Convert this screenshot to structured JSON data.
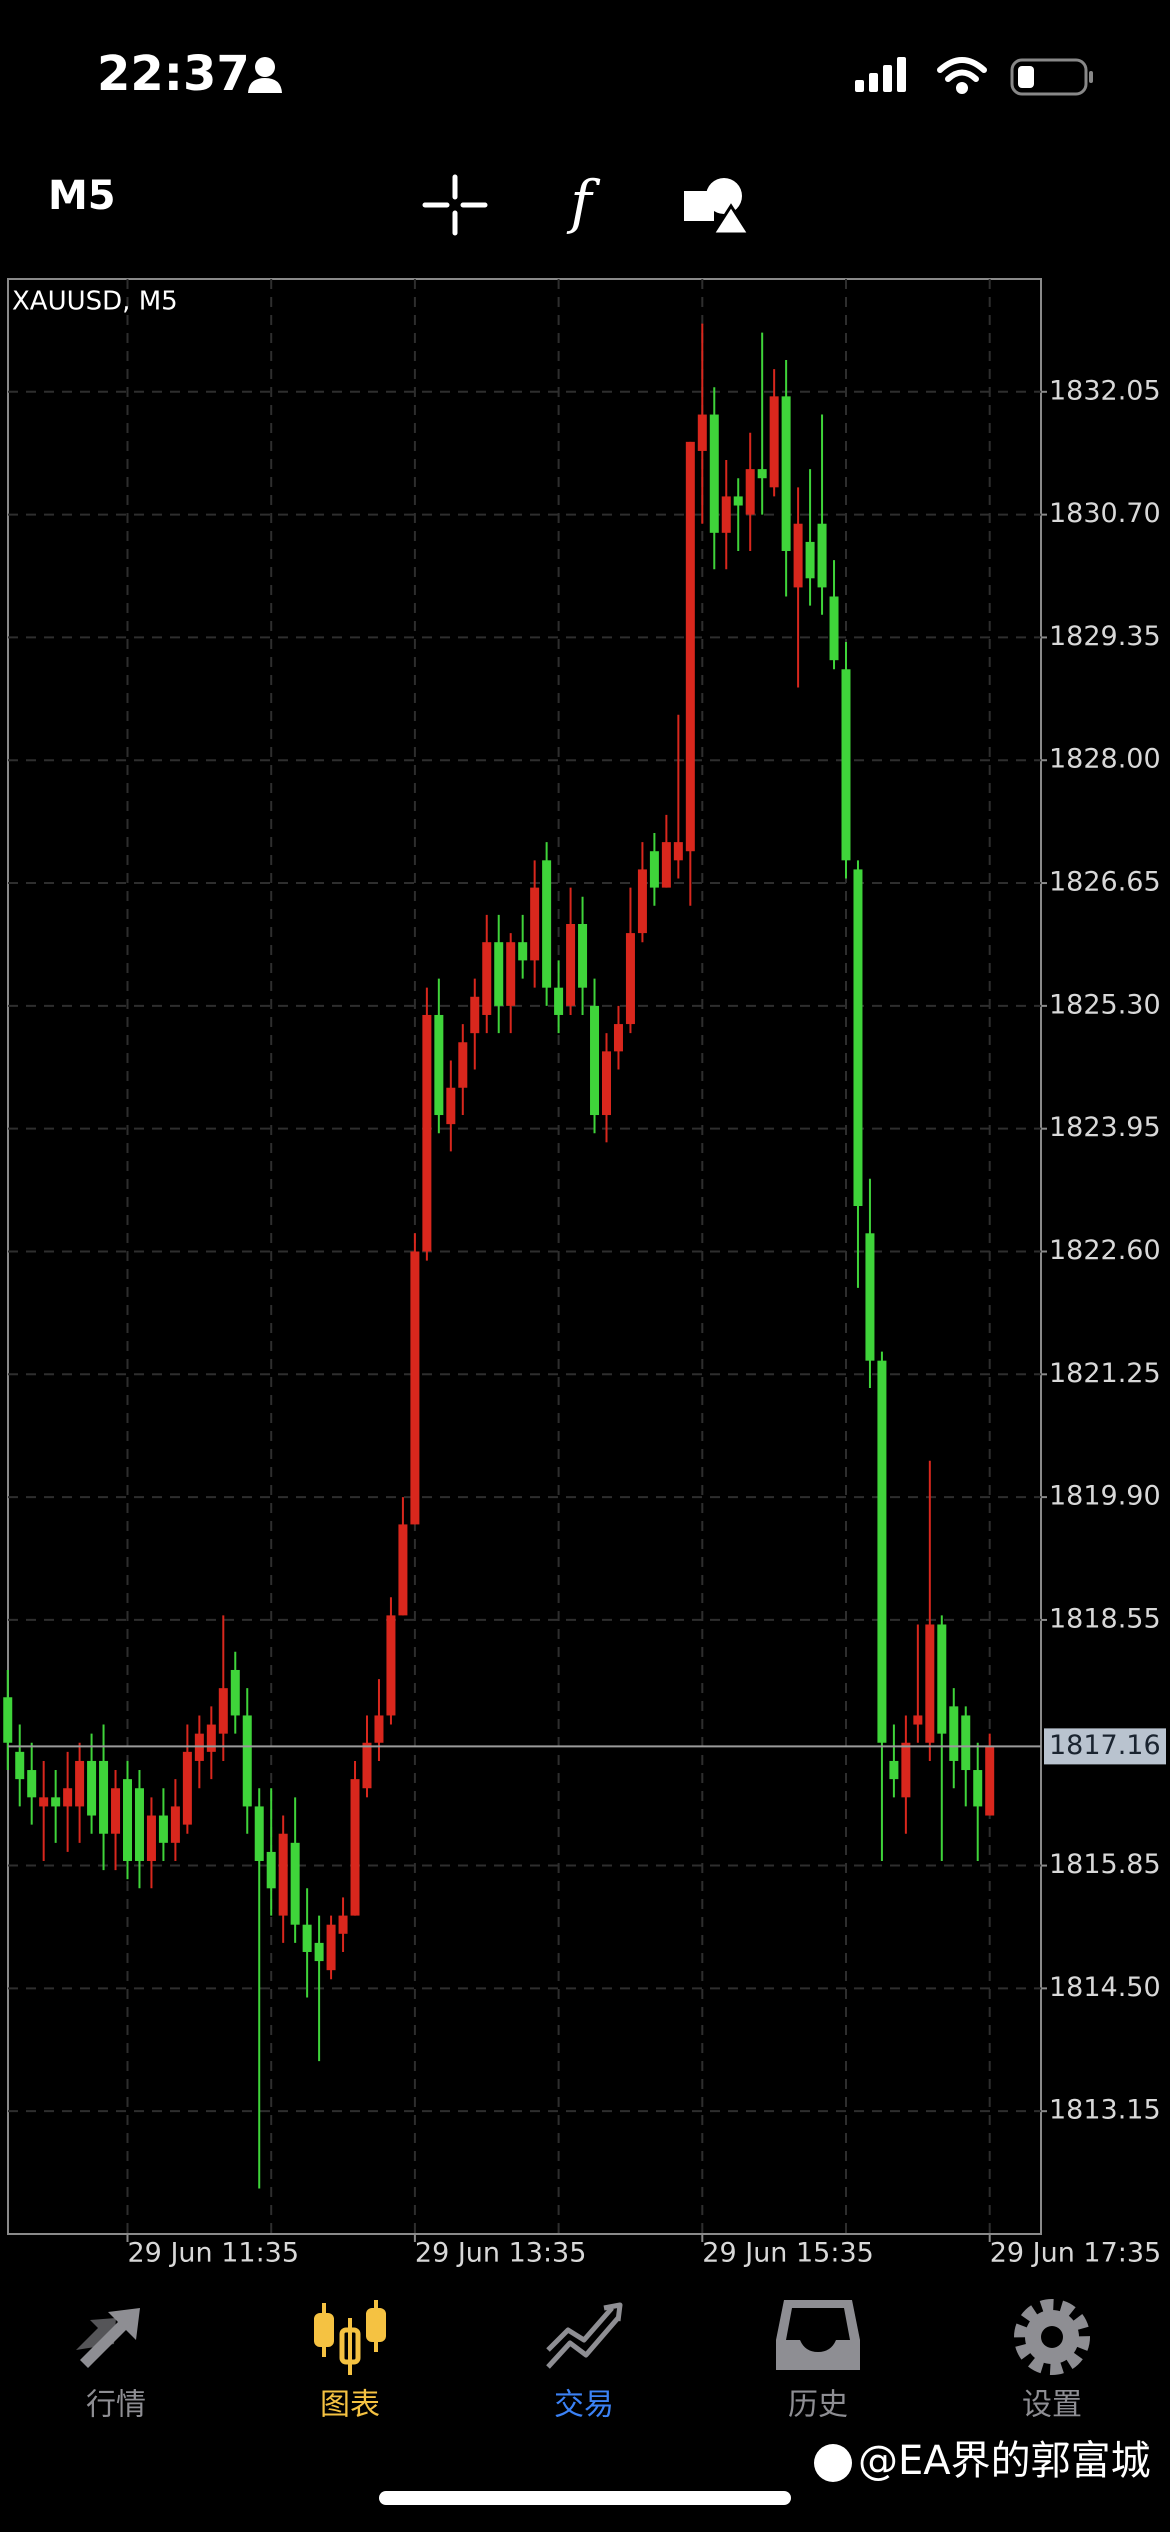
{
  "status_bar": {
    "time": "22:37"
  },
  "toolbar": {
    "timeframe": "M5"
  },
  "chart_data": {
    "type": "candlestick",
    "title": "XAUUSD, M5",
    "categories": [
      null,
      null,
      null,
      null,
      null,
      null,
      null,
      null,
      null,
      null,
      "29 Jun 11:35",
      null,
      null,
      null,
      null,
      null,
      null,
      null,
      null,
      null,
      null,
      null,
      null,
      null,
      null,
      null,
      null,
      null,
      null,
      null,
      null,
      null,
      null,
      null,
      "29 Jun 13:35",
      null,
      null,
      null,
      null,
      null,
      null,
      null,
      null,
      null,
      null,
      null,
      null,
      null,
      null,
      null,
      null,
      null,
      null,
      null,
      null,
      null,
      null,
      null,
      "29 Jun 15:35",
      null,
      null,
      null,
      null,
      null,
      null,
      null,
      null,
      null,
      null,
      null,
      null,
      null,
      null,
      null,
      null,
      null,
      null,
      null,
      null,
      null,
      null,
      null,
      "29 Jun 17:35"
    ],
    "open": [
      1817.7,
      1817.1,
      1816.9,
      1816.5,
      1816.6,
      1816.5,
      1816.5,
      1817.0,
      1817.0,
      1816.2,
      1816.8,
      1816.7,
      1815.9,
      1816.4,
      1816.1,
      1816.3,
      1817.0,
      1817.1,
      1817.3,
      1818.0,
      1817.5,
      1816.5,
      1816.0,
      1815.3,
      1816.1,
      1815.2,
      1815.0,
      1814.7,
      1815.1,
      1815.3,
      1816.7,
      1817.2,
      1817.5,
      1818.6,
      1819.6,
      1822.6,
      1825.2,
      1824.0,
      1824.4,
      1825.0,
      1825.2,
      1826.0,
      1825.3,
      1826.0,
      1825.8,
      1826.9,
      1825.5,
      1825.3,
      1826.2,
      1825.3,
      1824.1,
      1824.8,
      1825.1,
      1826.1,
      1827.0,
      1826.6,
      1826.9,
      1827.0,
      1831.4,
      1831.8,
      1830.5,
      1830.9,
      1830.7,
      1831.2,
      1831.0,
      1832.0,
      1829.9,
      1830.4,
      1830.6,
      1829.8,
      1829.0,
      1826.8,
      1822.8,
      1821.4,
      1817.0,
      1816.6,
      1817.4,
      1817.2,
      1818.5,
      1817.6,
      1817.5,
      1816.9,
      1816.4
    ],
    "high": [
      1818.0,
      1817.4,
      1817.2,
      1817.0,
      1816.9,
      1817.1,
      1817.2,
      1817.3,
      1817.4,
      1816.9,
      1817.0,
      1816.9,
      1816.6,
      1816.7,
      1816.8,
      1817.4,
      1817.5,
      1817.6,
      1818.6,
      1818.2,
      1817.8,
      1816.7,
      1816.7,
      1816.4,
      1816.6,
      1815.6,
      1815.3,
      1815.3,
      1815.5,
      1817.0,
      1817.5,
      1817.9,
      1818.8,
      1819.9,
      1822.8,
      1825.5,
      1825.6,
      1824.7,
      1825.1,
      1825.6,
      1826.3,
      1826.3,
      1826.1,
      1826.3,
      1826.9,
      1827.1,
      1825.8,
      1826.6,
      1826.5,
      1825.6,
      1825.0,
      1825.3,
      1826.6,
      1827.1,
      1827.2,
      1827.4,
      1828.5,
      1831.5,
      1832.8,
      1832.1,
      1831.3,
      1831.1,
      1831.6,
      1832.7,
      1832.3,
      1832.4,
      1831.0,
      1831.2,
      1831.8,
      1830.2,
      1829.3,
      1826.9,
      1823.4,
      1821.5,
      1817.4,
      1817.5,
      1818.5,
      1820.3,
      1818.6,
      1817.8,
      1817.6,
      1817.2,
      1817.3
    ],
    "low": [
      1816.9,
      1816.5,
      1816.3,
      1815.9,
      1816.1,
      1816.0,
      1816.1,
      1816.2,
      1815.8,
      1815.8,
      1815.7,
      1815.6,
      1815.6,
      1815.9,
      1815.9,
      1816.2,
      1816.7,
      1816.8,
      1817.0,
      1817.3,
      1816.2,
      1812.3,
      1815.3,
      1815.0,
      1815.0,
      1814.4,
      1813.7,
      1814.6,
      1814.9,
      1815.3,
      1816.6,
      1817.0,
      1817.4,
      1818.6,
      1819.6,
      1822.5,
      1823.9,
      1823.7,
      1824.1,
      1824.6,
      1825.0,
      1825.0,
      1825.0,
      1825.6,
      1825.5,
      1825.3,
      1825.0,
      1825.2,
      1825.2,
      1823.9,
      1823.8,
      1824.6,
      1825.0,
      1826.0,
      1826.4,
      1826.6,
      1826.7,
      1826.4,
      1830.6,
      1830.1,
      1830.1,
      1830.3,
      1830.3,
      1830.7,
      1830.9,
      1829.8,
      1828.8,
      1829.7,
      1829.6,
      1829.0,
      1826.7,
      1822.2,
      1821.1,
      1815.9,
      1816.6,
      1816.2,
      1817.2,
      1817.0,
      1815.9,
      1816.7,
      1816.5,
      1815.9,
      1816.4
    ],
    "close": [
      1817.2,
      1816.8,
      1816.6,
      1816.6,
      1816.5,
      1816.7,
      1817.0,
      1816.4,
      1816.2,
      1816.7,
      1815.9,
      1815.9,
      1816.4,
      1816.1,
      1816.5,
      1817.1,
      1817.3,
      1817.4,
      1817.8,
      1817.5,
      1816.5,
      1815.9,
      1815.6,
      1816.2,
      1815.2,
      1814.9,
      1814.8,
      1815.2,
      1815.3,
      1816.8,
      1817.2,
      1817.5,
      1818.6,
      1819.6,
      1822.6,
      1825.2,
      1824.1,
      1824.4,
      1824.9,
      1825.4,
      1826.0,
      1825.3,
      1826.0,
      1825.8,
      1826.6,
      1825.5,
      1825.2,
      1826.2,
      1825.5,
      1824.1,
      1824.8,
      1825.1,
      1826.1,
      1826.8,
      1826.6,
      1827.1,
      1827.1,
      1831.5,
      1831.8,
      1830.5,
      1830.9,
      1830.8,
      1831.2,
      1831.1,
      1832.0,
      1830.3,
      1830.6,
      1830.0,
      1829.9,
      1829.1,
      1826.9,
      1823.1,
      1821.4,
      1817.2,
      1816.8,
      1817.2,
      1817.5,
      1818.5,
      1817.3,
      1817.0,
      1816.9,
      1816.5,
      1817.16
    ],
    "up_color": "#d9271d",
    "down_color": "#3fd43a",
    "last_price": 1817.16,
    "ylim": [
      1811.8,
      1833.29
    ],
    "yticks": [
      1832.05,
      {
        "value": 1830.7,
        "label": "1830.70"
      },
      1829.35,
      {
        "value": 1828,
        "label": "1828.00"
      },
      1826.65,
      {
        "value": 1825.3,
        "label": "1825.30"
      },
      1823.95,
      {
        "value": 1822.6,
        "label": "1822.60"
      },
      1821.25,
      {
        "value": 1819.9,
        "label": "1819.90"
      },
      1818.55,
      1815.85,
      {
        "value": 1814.5,
        "label": "1814.50"
      },
      1813.15
    ],
    "grid": true
  },
  "tab_bar": {
    "items": [
      "行情",
      "图表",
      "交易",
      "历史",
      "设置"
    ]
  },
  "watermark": "@EA界的郭富城"
}
